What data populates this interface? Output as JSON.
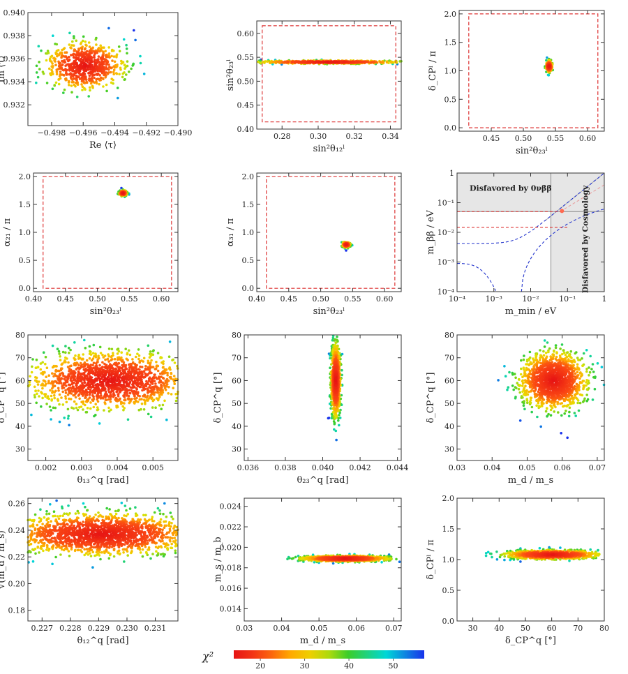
{
  "chart_data": [
    {
      "id": "p1",
      "type": "scatter",
      "xlabel": "Re ⟨τ⟩",
      "ylabel": "Im ⟨τ⟩",
      "xlim": [
        -0.4995,
        -0.49
      ],
      "ylim": [
        0.9302,
        0.94
      ],
      "xticks": [
        {
          "v": -0.498,
          "t": "−0.498"
        },
        {
          "v": -0.496,
          "t": "−0.496"
        },
        {
          "v": -0.494,
          "t": "−0.494"
        },
        {
          "v": -0.492,
          "t": "−0.492"
        },
        {
          "v": -0.49,
          "t": "−0.490"
        }
      ],
      "yticks": [
        {
          "v": 0.932,
          "t": "0.932"
        },
        {
          "v": 0.934,
          "t": "0.934"
        },
        {
          "v": 0.936,
          "t": "0.936"
        },
        {
          "v": 0.938,
          "t": "0.938"
        },
        {
          "v": 0.94,
          "t": "0.940"
        }
      ],
      "cloud": {
        "cx": -0.4959,
        "cy": 0.9354,
        "rx": 0.0012,
        "ry": 0.001,
        "rot": -0.35,
        "n": 700,
        "seed": 11
      }
    },
    {
      "id": "p2",
      "type": "scatter",
      "xlabel": "sin²θ₁₂ˡ",
      "ylabel": "sin²θ₂₃ˡ",
      "xlim": [
        0.266,
        0.346
      ],
      "ylim": [
        0.4,
        0.626
      ],
      "xticks": [
        {
          "v": 0.28,
          "t": "0.28"
        },
        {
          "v": 0.3,
          "t": "0.30"
        },
        {
          "v": 0.32,
          "t": "0.32"
        },
        {
          "v": 0.34,
          "t": "0.34"
        }
      ],
      "yticks": [
        {
          "v": 0.4,
          "t": "0.40"
        },
        {
          "v": 0.45,
          "t": "0.45"
        },
        {
          "v": 0.5,
          "t": "0.50"
        },
        {
          "v": 0.55,
          "t": "0.55"
        },
        {
          "v": 0.6,
          "t": "0.60"
        }
      ],
      "box": [
        0.269,
        0.343,
        0.415,
        0.616
      ],
      "cloud": {
        "cx": 0.306,
        "cy": 0.54,
        "rx": 0.019,
        "ry": 0.0016,
        "rot": 0,
        "n": 600,
        "seed": 12
      }
    },
    {
      "id": "p3",
      "type": "scatter",
      "xlabel": "sin²θ₂₃ˡ",
      "ylabel": "δ_CPˡ / π",
      "xlim": [
        0.4,
        0.626
      ],
      "ylim": [
        -0.06,
        2.06
      ],
      "xticks": [
        {
          "v": 0.45,
          "t": "0.45"
        },
        {
          "v": 0.5,
          "t": "0.50"
        },
        {
          "v": 0.55,
          "t": "0.55"
        },
        {
          "v": 0.6,
          "t": "0.60"
        }
      ],
      "yticks": [
        {
          "v": 0,
          "t": "0.0"
        },
        {
          "v": 0.5,
          "t": "0.5"
        },
        {
          "v": 1,
          "t": "1.0"
        },
        {
          "v": 1.5,
          "t": "1.5"
        },
        {
          "v": 2,
          "t": "2.0"
        }
      ],
      "box": [
        0.415,
        0.616,
        0,
        2
      ],
      "cloud": {
        "cx": 0.54,
        "cy": 1.08,
        "rx": 0.0025,
        "ry": 0.05,
        "rot": 0.3,
        "n": 200,
        "seed": 13
      }
    },
    {
      "id": "p4",
      "type": "scatter",
      "xlabel": "sin²θ₂₃ˡ",
      "ylabel": "α₂₁ / π",
      "xlim": [
        0.4,
        0.626
      ],
      "ylim": [
        -0.06,
        2.06
      ],
      "xticks": [
        {
          "v": 0.4,
          "t": "0.40"
        },
        {
          "v": 0.45,
          "t": "0.45"
        },
        {
          "v": 0.5,
          "t": "0.50"
        },
        {
          "v": 0.55,
          "t": "0.55"
        },
        {
          "v": 0.6,
          "t": "0.60"
        }
      ],
      "yticks": [
        {
          "v": 0,
          "t": "0.0"
        },
        {
          "v": 0.5,
          "t": "0.5"
        },
        {
          "v": 1,
          "t": "1.0"
        },
        {
          "v": 1.5,
          "t": "1.5"
        },
        {
          "v": 2,
          "t": "2.0"
        }
      ],
      "box": [
        0.415,
        0.616,
        0,
        2
      ],
      "cloud": {
        "cx": 0.54,
        "cy": 1.7,
        "rx": 0.003,
        "ry": 0.025,
        "rot": 0,
        "n": 150,
        "seed": 14
      }
    },
    {
      "id": "p5",
      "type": "scatter",
      "xlabel": "sin²θ₂₃ˡ",
      "ylabel": "α₃₁ / π",
      "xlim": [
        0.4,
        0.626
      ],
      "ylim": [
        -0.06,
        2.06
      ],
      "xticks": [
        {
          "v": 0.4,
          "t": "0.40"
        },
        {
          "v": 0.45,
          "t": "0.45"
        },
        {
          "v": 0.5,
          "t": "0.50"
        },
        {
          "v": 0.55,
          "t": "0.55"
        },
        {
          "v": 0.6,
          "t": "0.60"
        }
      ],
      "yticks": [
        {
          "v": 0,
          "t": "0.0"
        },
        {
          "v": 0.5,
          "t": "0.5"
        },
        {
          "v": 1,
          "t": "1.0"
        },
        {
          "v": 1.5,
          "t": "1.5"
        },
        {
          "v": 2,
          "t": "2.0"
        }
      ],
      "box": [
        0.415,
        0.616,
        0,
        2
      ],
      "cloud": {
        "cx": 0.54,
        "cy": 0.78,
        "rx": 0.003,
        "ry": 0.025,
        "rot": 0,
        "n": 150,
        "seed": 15
      }
    },
    {
      "id": "p6",
      "type": "line",
      "xlabel": "m_min / eV",
      "ylabel": "m_ββ / eV",
      "xlim": [
        -4,
        0
      ],
      "ylim": [
        -4,
        0
      ],
      "log": true,
      "xticks": [
        {
          "v": -4,
          "t": "10⁻⁴"
        },
        {
          "v": -3,
          "t": "10⁻³"
        },
        {
          "v": -2,
          "t": "10⁻²"
        },
        {
          "v": -1,
          "t": "10⁻¹"
        },
        {
          "v": 0,
          "t": "1"
        }
      ],
      "yticks": [
        {
          "v": -4,
          "t": "10⁻⁴"
        },
        {
          "v": -3,
          "t": "10⁻³"
        },
        {
          "v": -2,
          "t": "10⁻²"
        },
        {
          "v": -1,
          "t": "10⁻¹"
        },
        {
          "v": 0,
          "t": "1"
        }
      ],
      "annotations": [
        "Disfavored by 0νββ",
        "Disfavored by Cosmology"
      ],
      "point": [
        -1.15,
        -1.28
      ]
    },
    {
      "id": "p7",
      "type": "scatter",
      "xlabel": "θ₁₃^q [rad]",
      "ylabel": "δ_CP^q [°]",
      "xlim": [
        0.0015,
        0.0057
      ],
      "ylim": [
        25,
        80
      ],
      "xticks": [
        {
          "v": 0.002,
          "t": "0.002"
        },
        {
          "v": 0.003,
          "t": "0.003"
        },
        {
          "v": 0.004,
          "t": "0.004"
        },
        {
          "v": 0.005,
          "t": "0.005"
        }
      ],
      "yticks": [
        {
          "v": 30,
          "t": "30"
        },
        {
          "v": 40,
          "t": "40"
        },
        {
          "v": 50,
          "t": "50"
        },
        {
          "v": 60,
          "t": "60"
        },
        {
          "v": 70,
          "t": "70"
        },
        {
          "v": 80,
          "t": "80"
        }
      ],
      "cloud": {
        "cx": 0.0038,
        "cy": 60,
        "rx": 0.0011,
        "ry": 6,
        "rot": -0.25,
        "n": 1600,
        "seed": 17
      }
    },
    {
      "id": "p8",
      "type": "scatter",
      "xlabel": "θ₂₃^q [rad]",
      "ylabel": "δ_CP^q [°]",
      "xlim": [
        0.0358,
        0.0442
      ],
      "ylim": [
        25,
        80
      ],
      "xticks": [
        {
          "v": 0.036,
          "t": "0.036"
        },
        {
          "v": 0.038,
          "t": "0.038"
        },
        {
          "v": 0.04,
          "t": "0.040"
        },
        {
          "v": 0.042,
          "t": "0.042"
        },
        {
          "v": 0.044,
          "t": "0.044"
        }
      ],
      "yticks": [
        {
          "v": 30,
          "t": "30"
        },
        {
          "v": 40,
          "t": "40"
        },
        {
          "v": 50,
          "t": "50"
        },
        {
          "v": 60,
          "t": "60"
        },
        {
          "v": 70,
          "t": "70"
        },
        {
          "v": 80,
          "t": "80"
        }
      ],
      "cloud": {
        "cx": 0.0407,
        "cy": 60,
        "rx": 0.00012,
        "ry": 7.5,
        "rot": 0,
        "n": 900,
        "seed": 18
      }
    },
    {
      "id": "p9",
      "type": "scatter",
      "xlabel": "m_d / m_s",
      "ylabel": "δ_CP^q [°]",
      "xlim": [
        0.03,
        0.072
      ],
      "ylim": [
        25,
        80
      ],
      "xticks": [
        {
          "v": 0.03,
          "t": "0.03"
        },
        {
          "v": 0.04,
          "t": "0.04"
        },
        {
          "v": 0.05,
          "t": "0.05"
        },
        {
          "v": 0.06,
          "t": "0.06"
        },
        {
          "v": 0.07,
          "t": "0.07"
        }
      ],
      "yticks": [
        {
          "v": 30,
          "t": "30"
        },
        {
          "v": 40,
          "t": "40"
        },
        {
          "v": 50,
          "t": "50"
        },
        {
          "v": 60,
          "t": "60"
        },
        {
          "v": 70,
          "t": "70"
        },
        {
          "v": 80,
          "t": "80"
        }
      ],
      "cloud": {
        "cx": 0.0575,
        "cy": 60,
        "rx": 0.0046,
        "ry": 6,
        "rot": 0,
        "n": 1400,
        "seed": 19
      }
    },
    {
      "id": "p10",
      "type": "scatter",
      "xlabel": "θ₁₂^q [rad]",
      "ylabel": "√(m_d / m_s)",
      "xlim": [
        0.2265,
        0.2318
      ],
      "ylim": [
        0.172,
        0.264
      ],
      "xticks": [
        {
          "v": 0.227,
          "t": "0.227"
        },
        {
          "v": 0.228,
          "t": "0.228"
        },
        {
          "v": 0.229,
          "t": "0.229"
        },
        {
          "v": 0.23,
          "t": "0.230"
        },
        {
          "v": 0.231,
          "t": "0.231"
        }
      ],
      "yticks": [
        {
          "v": 0.18,
          "t": "0.18"
        },
        {
          "v": 0.2,
          "t": "0.20"
        },
        {
          "v": 0.22,
          "t": "0.22"
        },
        {
          "v": 0.24,
          "t": "0.24"
        },
        {
          "v": 0.26,
          "t": "0.26"
        }
      ],
      "cloud": {
        "cx": 0.2291,
        "cy": 0.237,
        "rx": 0.0016,
        "ry": 0.0075,
        "rot": 0,
        "n": 1800,
        "seed": 20
      }
    },
    {
      "id": "p11",
      "type": "scatter",
      "xlabel": "m_d / m_s",
      "ylabel": "m_s / m_b",
      "xlim": [
        0.03,
        0.072
      ],
      "ylim": [
        0.0128,
        0.0248
      ],
      "xticks": [
        {
          "v": 0.03,
          "t": "0.03"
        },
        {
          "v": 0.04,
          "t": "0.04"
        },
        {
          "v": 0.05,
          "t": "0.05"
        },
        {
          "v": 0.06,
          "t": "0.06"
        },
        {
          "v": 0.07,
          "t": "0.07"
        }
      ],
      "yticks": [
        {
          "v": 0.014,
          "t": "0.014"
        },
        {
          "v": 0.016,
          "t": "0.016"
        },
        {
          "v": 0.018,
          "t": "0.018"
        },
        {
          "v": 0.02,
          "t": "0.020"
        },
        {
          "v": 0.022,
          "t": "0.022"
        },
        {
          "v": 0.024,
          "t": "0.024"
        }
      ],
      "cloud": {
        "cx": 0.057,
        "cy": 0.0189,
        "rx": 0.0056,
        "ry": 0.00014,
        "rot": 0.01,
        "n": 900,
        "seed": 21
      }
    },
    {
      "id": "p12",
      "type": "scatter",
      "xlabel": "δ_CP^q [°]",
      "ylabel": "δ_CPˡ / π",
      "xlim": [
        24,
        80
      ],
      "ylim": [
        0,
        2
      ],
      "xticks": [
        {
          "v": 30,
          "t": "30"
        },
        {
          "v": 40,
          "t": "40"
        },
        {
          "v": 50,
          "t": "50"
        },
        {
          "v": 60,
          "t": "60"
        },
        {
          "v": 70,
          "t": "70"
        },
        {
          "v": 80,
          "t": "80"
        }
      ],
      "yticks": [
        {
          "v": 0,
          "t": "0.0"
        },
        {
          "v": 0.5,
          "t": "0.5"
        },
        {
          "v": 1,
          "t": "1.0"
        },
        {
          "v": 1.5,
          "t": "1.5"
        },
        {
          "v": 2,
          "t": "2.0"
        }
      ],
      "cloud": {
        "cx": 60,
        "cy": 1.08,
        "rx": 8.5,
        "ry": 0.035,
        "rot": 0,
        "n": 900,
        "seed": 22
      }
    },
    {
      "id": "colorbar",
      "type": "colorbar",
      "label": "χ²",
      "ticks": [
        {
          "v": 20,
          "t": "20"
        },
        {
          "v": 30,
          "t": "30"
        },
        {
          "v": 40,
          "t": "40"
        },
        {
          "v": 50,
          "t": "50"
        }
      ],
      "range": [
        14,
        57
      ]
    }
  ],
  "colors": {
    "box": "#dd3333",
    "blue": "#2233cc",
    "grid": "#999999"
  }
}
